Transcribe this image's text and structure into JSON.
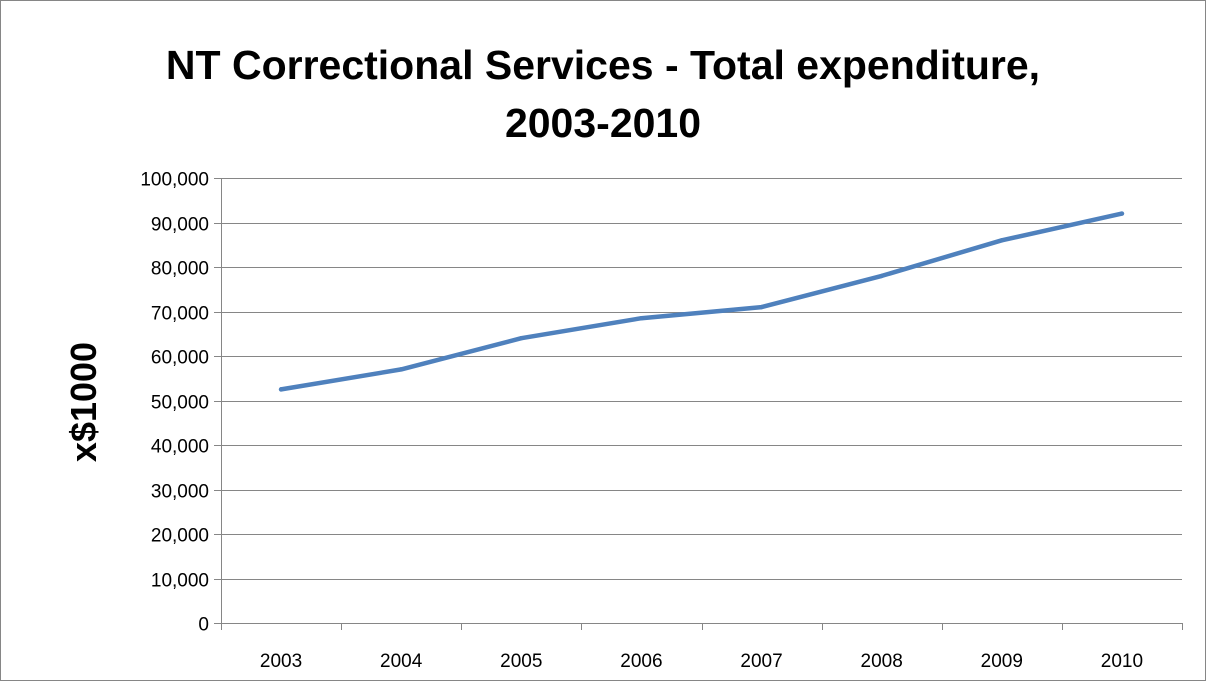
{
  "chart_data": {
    "type": "line",
    "title_line1": "NT Correctional Services - Total expenditure,",
    "title_line2": "2003-2010",
    "xlabel": "",
    "ylabel": "x$1000",
    "categories": [
      "2003",
      "2004",
      "2005",
      "2006",
      "2007",
      "2008",
      "2009",
      "2010"
    ],
    "series": [
      {
        "values": [
          52500,
          57000,
          64000,
          68500,
          71000,
          78000,
          86000,
          92000
        ],
        "color": "#4F81BD"
      }
    ],
    "ylim": [
      0,
      100000
    ],
    "yticks": [
      0,
      10000,
      20000,
      30000,
      40000,
      50000,
      60000,
      70000,
      80000,
      90000,
      100000
    ],
    "ytick_labels": [
      "0",
      "10,000",
      "20,000",
      "30,000",
      "40,000",
      "50,000",
      "60,000",
      "70,000",
      "80,000",
      "90,000",
      "100,000"
    ],
    "grid": true,
    "legend": "none"
  }
}
